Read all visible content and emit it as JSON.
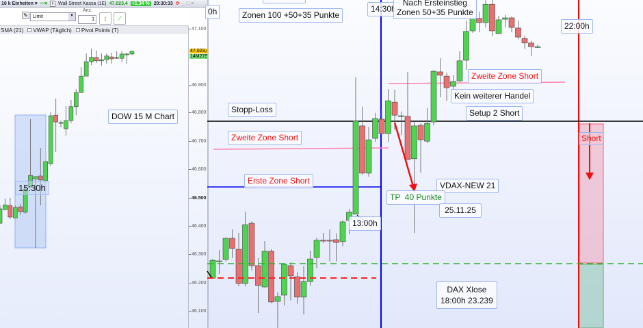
{
  "toolbar": {
    "units": "10 k Einheiten",
    "instrument": "Wall Street Kassa (1E)",
    "price": "47.023,4",
    "change": "+1,34 %",
    "time": "20:30:33",
    "order_type": "Limit",
    "qty_label": "Anz.",
    "qty_value": "1",
    "indicators": [
      "SMA (21)",
      "VWAP (Täglich)",
      "Pivot Points (T)"
    ]
  },
  "axis": {
    "ticks": [
      "47.100",
      "46.900",
      "46.800",
      "46.700",
      "46.600",
      "46.500",
      "46.400",
      "46.300",
      "46.200",
      "46.100"
    ],
    "last_price": "47.023,4",
    "countdown": "14M27S"
  },
  "left_labels": {
    "chart_name": "DOW 15 M Chart",
    "time_1530": "15:30h"
  },
  "right_labels": {
    "partial_time": "0h",
    "zonen_100": "Zonen 100 +50+35 Punkte",
    "time_1430": "14:30h",
    "nach_line1": "Nach Ersteinstieg",
    "nach_line2": "Zonen 50+35 Punkte",
    "time_2200": "22:00h",
    "stopp_loss": "Stopp-Loss",
    "zweite_zone_1": "Zweite Zone Short",
    "erste_zone": "Erste Zone Short",
    "zweite_zone_2": "Zweite Zone Short",
    "kein_handel": "Kein weiterer Handel",
    "setup2": "Setup 2 Short",
    "short": "Short",
    "vdax": "VDAX-NEW 21",
    "tp": "TP  40 Punkte",
    "date": "25.11.25",
    "time_1300": "13:00h",
    "dax_close_1": "DAX Xlose",
    "dax_close_2": "18:00h 23.239"
  },
  "colors": {
    "up": "#4fd44f",
    "down": "#e87070",
    "stop": "#000000",
    "zone1": "#0000ee",
    "zone2": "#ff80b0",
    "entry_dash": "#ff2020",
    "tp_dash": "#30b030",
    "session": "#ff0000",
    "session_1430": "#0000ff"
  },
  "chart_data": [
    {
      "type": "candlestick",
      "title": "DOW 15 M Chart",
      "ylim": [
        46045,
        47204
      ],
      "ohlc": [
        [
          46415,
          46478,
          46413,
          46466
        ],
        [
          46463,
          46502,
          46461,
          46480
        ],
        [
          46478,
          46505,
          46430,
          46437
        ],
        [
          46434,
          46478,
          46434,
          46471
        ],
        [
          46473,
          46483,
          46444,
          46456
        ],
        [
          46454,
          46546,
          46449,
          46536
        ],
        [
          46543,
          46783,
          46539,
          46584
        ],
        [
          46572,
          46580,
          46328,
          46580
        ],
        [
          46582,
          46681,
          46478,
          46568
        ],
        [
          46565,
          46633,
          46565,
          46633
        ],
        [
          46626,
          46807,
          46618,
          46795
        ],
        [
          46797,
          46856,
          46667,
          46773
        ],
        [
          46771,
          46778,
          46754,
          46771
        ],
        [
          46749,
          46829,
          46725,
          46778
        ],
        [
          46778,
          46851,
          46768,
          46827
        ],
        [
          46827,
          46889,
          46797,
          46877
        ],
        [
          46877,
          46967,
          46877,
          46935
        ],
        [
          46935,
          47015,
          46935,
          46986
        ],
        [
          46986,
          47032,
          46974,
          47001
        ],
        [
          47001,
          47025,
          46981,
          46989
        ],
        [
          46989,
          47015,
          46972,
          46993
        ],
        [
          46993,
          47015,
          46979,
          47006
        ],
        [
          47003,
          47018,
          46979,
          46996
        ],
        [
          46998,
          47023,
          46996,
          47001
        ],
        [
          46998,
          47023,
          46986,
          47013
        ],
        [
          47013,
          47018,
          46979,
          47013
        ],
        [
          47013,
          47025,
          47010,
          47023
        ]
      ]
    },
    {
      "type": "candlestick",
      "title": "",
      "ylim": [
        46045,
        47204
      ],
      "ohlc": [
        [
          46221,
          46289,
          46221,
          46284
        ],
        [
          46280,
          46321,
          46236,
          46282
        ],
        [
          46287,
          46364,
          46280,
          46362
        ],
        [
          46362,
          46393,
          46292,
          46326
        ],
        [
          46323,
          46381,
          46192,
          46202
        ],
        [
          46202,
          46456,
          46192,
          46410
        ],
        [
          46415,
          46422,
          46248,
          46265
        ],
        [
          46265,
          46292,
          46098,
          46195
        ],
        [
          46190,
          46352,
          46188,
          46316
        ],
        [
          46316,
          46323,
          46132,
          46137
        ],
        [
          46139,
          46171,
          46045,
          46156
        ],
        [
          46161,
          46272,
          46125,
          46270
        ],
        [
          46265,
          46277,
          46142,
          46229
        ],
        [
          46226,
          46241,
          46130,
          46154
        ],
        [
          46154,
          46263,
          46093,
          46209
        ],
        [
          46209,
          46318,
          46195,
          46289
        ],
        [
          46294,
          46364,
          46255,
          46355
        ],
        [
          46355,
          46381,
          46345,
          46352
        ],
        [
          46355,
          46393,
          46280,
          46352
        ],
        [
          46357,
          46379,
          46280,
          46347
        ],
        [
          46350,
          46425,
          46333,
          46420
        ],
        [
          46425,
          46466,
          46376,
          46454
        ],
        [
          46447,
          46931,
          46447,
          46776
        ],
        [
          46759,
          46827,
          46587,
          46592
        ],
        [
          46592,
          46756,
          46580,
          46710
        ],
        [
          46715,
          46805,
          46703,
          46785
        ],
        [
          46783,
          46817,
          46727,
          46732
        ],
        [
          46732,
          46889,
          46703,
          46848
        ],
        [
          46843,
          46887,
          46744,
          46797
        ],
        [
          46795,
          46810,
          46727,
          46795
        ],
        [
          46793,
          46950,
          46640,
          46640
        ],
        [
          46643,
          46773,
          46381,
          46759
        ],
        [
          46761,
          46768,
          46594,
          46710
        ],
        [
          46705,
          46822,
          46698,
          46768
        ],
        [
          46773,
          46957,
          46761,
          46952
        ],
        [
          46950,
          46998,
          46860,
          46938
        ],
        [
          46935,
          46947,
          46848,
          46894
        ],
        [
          46899,
          46938,
          46885,
          46916
        ],
        [
          46918,
          47023,
          46914,
          46989
        ],
        [
          46991,
          47131,
          46957,
          47093
        ],
        [
          47095,
          47146,
          47088,
          47139
        ],
        [
          47139,
          47163,
          47090,
          47124
        ],
        [
          47124,
          47204,
          47107,
          47189
        ],
        [
          47189,
          47204,
          47076,
          47095
        ],
        [
          47085,
          47148,
          47083,
          47134
        ],
        [
          47136,
          47151,
          47107,
          47141
        ],
        [
          47141,
          47146,
          47090,
          47107
        ],
        [
          47105,
          47131,
          47066,
          47073
        ],
        [
          47068,
          47078,
          47032,
          47052
        ],
        [
          47052,
          47059,
          47006,
          47039
        ],
        [
          47039,
          47047,
          47035,
          47039
        ]
      ]
    }
  ]
}
